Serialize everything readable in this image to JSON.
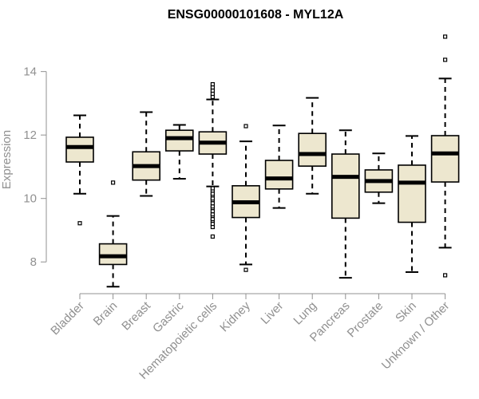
{
  "chart_data": {
    "type": "boxplot",
    "title": "ENSG00000101608 - MYL12A",
    "xlabel": "",
    "ylabel": "Expression",
    "ylim": [
      7.0,
      15.4
    ],
    "yticks": [
      8,
      10,
      12,
      14
    ],
    "box_color": "#ede7cf",
    "median_color": "#000000",
    "categories": [
      "Bladder",
      "Brain",
      "Breast",
      "Gastric",
      "Hematopoietic cells",
      "Kidney",
      "Liver",
      "Lung",
      "Pancreas",
      "Prostate",
      "Skin",
      "Unknown / Other"
    ],
    "series": [
      {
        "name": "Bladder",
        "whisker_low": 10.15,
        "q1": 11.15,
        "median": 11.62,
        "q3": 11.93,
        "whisker_high": 12.62,
        "outliers": [
          9.22
        ]
      },
      {
        "name": "Brain",
        "whisker_low": 7.22,
        "q1": 7.92,
        "median": 8.18,
        "q3": 8.57,
        "whisker_high": 9.45,
        "outliers": [
          10.5
        ]
      },
      {
        "name": "Breast",
        "whisker_low": 10.08,
        "q1": 10.58,
        "median": 11.02,
        "q3": 11.47,
        "whisker_high": 12.72,
        "outliers": []
      },
      {
        "name": "Gastric",
        "whisker_low": 10.62,
        "q1": 11.5,
        "median": 11.9,
        "q3": 12.15,
        "whisker_high": 12.32,
        "outliers": []
      },
      {
        "name": "Hematopoietic cells",
        "whisker_low": 10.38,
        "q1": 11.4,
        "median": 11.76,
        "q3": 12.1,
        "whisker_high": 13.12,
        "outliers": [
          8.8,
          9.1,
          9.2,
          9.3,
          9.35,
          9.45,
          9.5,
          9.6,
          9.7,
          9.75,
          9.85,
          9.95,
          10.0,
          10.1,
          10.15,
          10.25,
          10.32,
          13.2,
          13.3,
          13.4,
          13.5,
          13.6
        ]
      },
      {
        "name": "Kidney",
        "whisker_low": 7.92,
        "q1": 9.4,
        "median": 9.88,
        "q3": 10.4,
        "whisker_high": 11.8,
        "outliers": [
          7.75,
          12.28
        ]
      },
      {
        "name": "Liver",
        "whisker_low": 9.7,
        "q1": 10.3,
        "median": 10.63,
        "q3": 11.2,
        "whisker_high": 12.3,
        "outliers": []
      },
      {
        "name": "Lung",
        "whisker_low": 10.15,
        "q1": 11.02,
        "median": 11.4,
        "q3": 12.05,
        "whisker_high": 13.17,
        "outliers": []
      },
      {
        "name": "Pancreas",
        "whisker_low": 7.5,
        "q1": 9.38,
        "median": 10.68,
        "q3": 11.4,
        "whisker_high": 12.15,
        "outliers": []
      },
      {
        "name": "Prostate",
        "whisker_low": 9.85,
        "q1": 10.2,
        "median": 10.55,
        "q3": 10.9,
        "whisker_high": 11.42,
        "outliers": []
      },
      {
        "name": "Skin",
        "whisker_low": 7.68,
        "q1": 9.25,
        "median": 10.5,
        "q3": 11.05,
        "whisker_high": 11.97,
        "outliers": []
      },
      {
        "name": "Unknown / Other",
        "whisker_low": 8.45,
        "q1": 10.52,
        "median": 11.42,
        "q3": 11.98,
        "whisker_high": 13.78,
        "outliers": [
          7.58,
          14.37,
          15.1
        ]
      }
    ]
  }
}
